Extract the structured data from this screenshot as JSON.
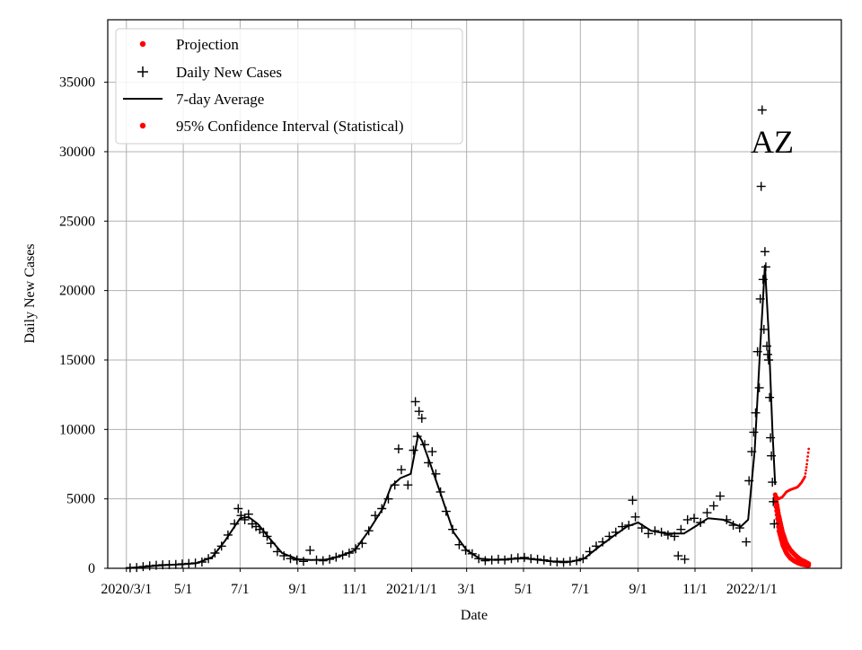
{
  "chart_data": {
    "type": "scatter",
    "title": "",
    "annotation": "AZ",
    "xlabel": "Date",
    "ylabel": "Daily New Cases",
    "x_range": [
      "2020-02-10",
      "2022-04-07"
    ],
    "ylim": [
      0,
      39500
    ],
    "yticks": [
      0,
      5000,
      10000,
      15000,
      20000,
      25000,
      30000,
      35000
    ],
    "xticks": [
      {
        "date": "2020-03-01",
        "label": "2020/3/1"
      },
      {
        "date": "2020-05-01",
        "label": "5/1"
      },
      {
        "date": "2020-07-01",
        "label": "7/1"
      },
      {
        "date": "2020-09-01",
        "label": "9/1"
      },
      {
        "date": "2020-11-01",
        "label": "11/1"
      },
      {
        "date": "2021-01-01",
        "label": "2021/1/1"
      },
      {
        "date": "2021-03-01",
        "label": "3/1"
      },
      {
        "date": "2021-05-01",
        "label": "5/1"
      },
      {
        "date": "2021-07-01",
        "label": "7/1"
      },
      {
        "date": "2021-09-01",
        "label": "9/1"
      },
      {
        "date": "2021-11-01",
        "label": "11/1"
      },
      {
        "date": "2022-01-01",
        "label": "2022/1/1"
      }
    ],
    "grid": true,
    "legend_position": "top-left",
    "colors": {
      "projection": "#ff0000",
      "daily": "#000000",
      "average": "#000000",
      "ci": "#ff0000",
      "grid": "#b0b0b0"
    },
    "series": [
      {
        "name": "Projection",
        "style": "red-dot-line",
        "points": [
          [
            "2022-01-26",
            5300
          ],
          [
            "2022-01-30",
            5000
          ],
          [
            "2022-02-03",
            5150
          ],
          [
            "2022-02-07",
            5500
          ],
          [
            "2022-02-11",
            5650
          ],
          [
            "2022-02-15",
            5750
          ],
          [
            "2022-02-19",
            5850
          ],
          [
            "2022-02-23",
            6150
          ],
          [
            "2022-02-27",
            6600
          ],
          [
            "2022-03-01",
            7500
          ],
          [
            "2022-03-03",
            8600
          ]
        ]
      },
      {
        "name": "Daily New Cases",
        "style": "black-plus",
        "points": [
          [
            "2020-03-05",
            30
          ],
          [
            "2020-03-12",
            60
          ],
          [
            "2020-03-19",
            120
          ],
          [
            "2020-03-26",
            180
          ],
          [
            "2020-04-02",
            220
          ],
          [
            "2020-04-09",
            250
          ],
          [
            "2020-04-16",
            260
          ],
          [
            "2020-04-23",
            280
          ],
          [
            "2020-04-30",
            320
          ],
          [
            "2020-05-07",
            350
          ],
          [
            "2020-05-14",
            380
          ],
          [
            "2020-05-21",
            450
          ],
          [
            "2020-05-28",
            700
          ],
          [
            "2020-06-04",
            1100
          ],
          [
            "2020-06-11",
            1600
          ],
          [
            "2020-06-18",
            2400
          ],
          [
            "2020-06-25",
            3200
          ],
          [
            "2020-06-29",
            4300
          ],
          [
            "2020-07-02",
            3800
          ],
          [
            "2020-07-06",
            3500
          ],
          [
            "2020-07-10",
            3900
          ],
          [
            "2020-07-14",
            3200
          ],
          [
            "2020-07-18",
            3000
          ],
          [
            "2020-07-22",
            2800
          ],
          [
            "2020-07-26",
            2600
          ],
          [
            "2020-07-30",
            2300
          ],
          [
            "2020-08-03",
            1800
          ],
          [
            "2020-08-10",
            1200
          ],
          [
            "2020-08-17",
            900
          ],
          [
            "2020-08-24",
            700
          ],
          [
            "2020-08-31",
            600
          ],
          [
            "2020-09-07",
            500
          ],
          [
            "2020-09-14",
            1300
          ],
          [
            "2020-09-21",
            600
          ],
          [
            "2020-09-28",
            550
          ],
          [
            "2020-10-05",
            650
          ],
          [
            "2020-10-12",
            800
          ],
          [
            "2020-10-19",
            950
          ],
          [
            "2020-10-26",
            1100
          ],
          [
            "2020-11-02",
            1400
          ],
          [
            "2020-11-09",
            1800
          ],
          [
            "2020-11-16",
            2700
          ],
          [
            "2020-11-23",
            3800
          ],
          [
            "2020-11-30",
            4300
          ],
          [
            "2020-12-07",
            5000
          ],
          [
            "2020-12-14",
            6000
          ],
          [
            "2020-12-18",
            8600
          ],
          [
            "2020-12-21",
            7100
          ],
          [
            "2020-12-28",
            6000
          ],
          [
            "2021-01-03",
            8500
          ],
          [
            "2021-01-05",
            12000
          ],
          [
            "2021-01-07",
            9500
          ],
          [
            "2021-01-09",
            11300
          ],
          [
            "2021-01-12",
            10800
          ],
          [
            "2021-01-15",
            8900
          ],
          [
            "2021-01-19",
            7600
          ],
          [
            "2021-01-23",
            8400
          ],
          [
            "2021-01-27",
            6800
          ],
          [
            "2021-02-01",
            5500
          ],
          [
            "2021-02-07",
            4100
          ],
          [
            "2021-02-14",
            2800
          ],
          [
            "2021-02-21",
            1700
          ],
          [
            "2021-02-28",
            1300
          ],
          [
            "2021-03-07",
            1050
          ],
          [
            "2021-03-14",
            700
          ],
          [
            "2021-03-21",
            550
          ],
          [
            "2021-03-28",
            600
          ],
          [
            "2021-04-04",
            650
          ],
          [
            "2021-04-11",
            600
          ],
          [
            "2021-04-18",
            700
          ],
          [
            "2021-04-25",
            750
          ],
          [
            "2021-05-02",
            780
          ],
          [
            "2021-05-09",
            700
          ],
          [
            "2021-05-16",
            650
          ],
          [
            "2021-05-23",
            600
          ],
          [
            "2021-05-30",
            500
          ],
          [
            "2021-06-06",
            450
          ],
          [
            "2021-06-13",
            420
          ],
          [
            "2021-06-20",
            500
          ],
          [
            "2021-06-27",
            550
          ],
          [
            "2021-07-04",
            700
          ],
          [
            "2021-07-11",
            1200
          ],
          [
            "2021-07-18",
            1600
          ],
          [
            "2021-07-25",
            1900
          ],
          [
            "2021-08-01",
            2300
          ],
          [
            "2021-08-08",
            2600
          ],
          [
            "2021-08-15",
            3000
          ],
          [
            "2021-08-22",
            3100
          ],
          [
            "2021-08-26",
            4900
          ],
          [
            "2021-08-29",
            3700
          ],
          [
            "2021-09-05",
            2900
          ],
          [
            "2021-09-12",
            2500
          ],
          [
            "2021-09-19",
            2700
          ],
          [
            "2021-09-26",
            2600
          ],
          [
            "2021-10-03",
            2400
          ],
          [
            "2021-10-10",
            2300
          ],
          [
            "2021-10-14",
            900
          ],
          [
            "2021-10-17",
            2800
          ],
          [
            "2021-10-21",
            650
          ],
          [
            "2021-10-24",
            3500
          ],
          [
            "2021-10-31",
            3600
          ],
          [
            "2021-11-07",
            3300
          ],
          [
            "2021-11-14",
            4000
          ],
          [
            "2021-11-21",
            4500
          ],
          [
            "2021-11-28",
            5200
          ],
          [
            "2021-12-05",
            3500
          ],
          [
            "2021-12-12",
            3100
          ],
          [
            "2021-12-19",
            2900
          ],
          [
            "2021-12-26",
            1900
          ],
          [
            "2021-12-29",
            6300
          ],
          [
            "2022-01-01",
            8400
          ],
          [
            "2022-01-03",
            9800
          ],
          [
            "2022-01-05",
            11200
          ],
          [
            "2022-01-07",
            15600
          ],
          [
            "2022-01-09",
            13000
          ],
          [
            "2022-01-10",
            19400
          ],
          [
            "2022-01-11",
            27500
          ],
          [
            "2022-01-12",
            33000
          ],
          [
            "2022-01-13",
            20800
          ],
          [
            "2022-01-14",
            17200
          ],
          [
            "2022-01-15",
            22800
          ],
          [
            "2022-01-16",
            21700
          ],
          [
            "2022-01-17",
            16000
          ],
          [
            "2022-01-18",
            15400
          ],
          [
            "2022-01-19",
            15000
          ],
          [
            "2022-01-20",
            12300
          ],
          [
            "2022-01-21",
            9400
          ],
          [
            "2022-01-22",
            8100
          ],
          [
            "2022-01-23",
            6200
          ],
          [
            "2022-01-24",
            4800
          ],
          [
            "2022-01-25",
            3200
          ]
        ]
      },
      {
        "name": "7-day Average",
        "style": "black-line",
        "points": [
          [
            "2020-03-01",
            10
          ],
          [
            "2020-03-15",
            70
          ],
          [
            "2020-04-01",
            180
          ],
          [
            "2020-04-15",
            240
          ],
          [
            "2020-05-01",
            290
          ],
          [
            "2020-05-15",
            360
          ],
          [
            "2020-06-01",
            800
          ],
          [
            "2020-06-15",
            2000
          ],
          [
            "2020-07-01",
            3600
          ],
          [
            "2020-07-10",
            3700
          ],
          [
            "2020-07-20",
            3200
          ],
          [
            "2020-08-01",
            2200
          ],
          [
            "2020-08-15",
            1100
          ],
          [
            "2020-09-01",
            650
          ],
          [
            "2020-09-15",
            600
          ],
          [
            "2020-10-01",
            620
          ],
          [
            "2020-10-15",
            850
          ],
          [
            "2020-11-01",
            1300
          ],
          [
            "2020-11-15",
            2600
          ],
          [
            "2020-12-01",
            4300
          ],
          [
            "2020-12-10",
            5900
          ],
          [
            "2020-12-20",
            6500
          ],
          [
            "2020-12-31",
            6800
          ],
          [
            "2021-01-08",
            9600
          ],
          [
            "2021-01-12",
            9200
          ],
          [
            "2021-01-20",
            7700
          ],
          [
            "2021-02-01",
            5400
          ],
          [
            "2021-02-15",
            2600
          ],
          [
            "2021-03-01",
            1300
          ],
          [
            "2021-03-15",
            700
          ],
          [
            "2021-04-01",
            600
          ],
          [
            "2021-05-01",
            720
          ],
          [
            "2021-06-01",
            500
          ],
          [
            "2021-06-20",
            460
          ],
          [
            "2021-07-05",
            700
          ],
          [
            "2021-07-20",
            1500
          ],
          [
            "2021-08-05",
            2300
          ],
          [
            "2021-08-20",
            3000
          ],
          [
            "2021-09-01",
            3300
          ],
          [
            "2021-09-15",
            2700
          ],
          [
            "2021-10-01",
            2500
          ],
          [
            "2021-10-20",
            2500
          ],
          [
            "2021-11-01",
            3000
          ],
          [
            "2021-11-15",
            3600
          ],
          [
            "2021-12-01",
            3500
          ],
          [
            "2021-12-20",
            3000
          ],
          [
            "2021-12-28",
            3500
          ],
          [
            "2022-01-04",
            8500
          ],
          [
            "2022-01-10",
            16000
          ],
          [
            "2022-01-15",
            21800
          ],
          [
            "2022-01-19",
            17000
          ],
          [
            "2022-01-23",
            10000
          ],
          [
            "2022-01-26",
            6000
          ]
        ]
      },
      {
        "name": "95% Confidence Interval (Statistical)",
        "style": "red-dot-band",
        "upper": [
          [
            "2022-01-26",
            5300
          ],
          [
            "2022-01-30",
            3800
          ],
          [
            "2022-02-03",
            2600
          ],
          [
            "2022-02-07",
            1800
          ],
          [
            "2022-02-11",
            1350
          ],
          [
            "2022-02-15",
            1050
          ],
          [
            "2022-02-19",
            800
          ],
          [
            "2022-02-23",
            600
          ],
          [
            "2022-02-27",
            480
          ],
          [
            "2022-03-01",
            400
          ],
          [
            "2022-03-03",
            330
          ]
        ],
        "lower": [
          [
            "2022-01-26",
            5000
          ],
          [
            "2022-01-30",
            2700
          ],
          [
            "2022-02-03",
            1700
          ],
          [
            "2022-02-07",
            1100
          ],
          [
            "2022-02-11",
            750
          ],
          [
            "2022-02-15",
            550
          ],
          [
            "2022-02-19",
            400
          ],
          [
            "2022-02-23",
            300
          ],
          [
            "2022-02-27",
            240
          ],
          [
            "2022-03-01",
            220
          ],
          [
            "2022-03-03",
            210
          ]
        ]
      }
    ]
  }
}
